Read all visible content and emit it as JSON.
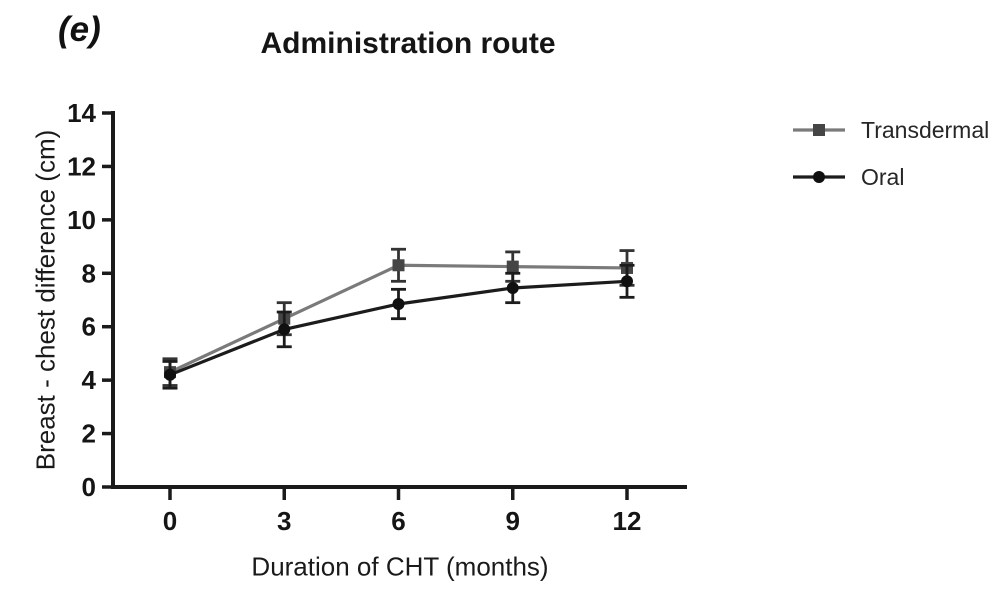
{
  "panel_label": "(e)",
  "title": "Administration route",
  "chart_data": {
    "type": "line",
    "title": "Administration route",
    "xlabel": "Duration of CHT (months)",
    "ylabel": "Breast - chest difference (cm)",
    "x": [
      0,
      3,
      6,
      9,
      12
    ],
    "xticks": [
      "0",
      "3",
      "6",
      "9",
      "12"
    ],
    "xtick_values": [
      0,
      3,
      6,
      9,
      12
    ],
    "yticks": [
      "0",
      "2",
      "4",
      "6",
      "8",
      "10",
      "12",
      "14"
    ],
    "ytick_values": [
      0,
      2,
      4,
      6,
      8,
      10,
      12,
      14
    ],
    "xlim": [
      0,
      12
    ],
    "ylim": [
      0,
      14
    ],
    "grid": false,
    "legend_position": "right",
    "error_bars": true,
    "series": [
      {
        "name": "Transdermal",
        "marker": "square",
        "line_color": "#7a7a7a",
        "marker_color": "#454545",
        "error_color": "#333333",
        "values": [
          4.3,
          6.3,
          8.3,
          8.25,
          8.2
        ],
        "errors": [
          0.5,
          0.6,
          0.6,
          0.55,
          0.65
        ]
      },
      {
        "name": "Oral",
        "marker": "circle",
        "line_color": "#1c1c1c",
        "marker_color": "#101010",
        "error_color": "#1c1c1c",
        "values": [
          4.2,
          5.9,
          6.85,
          7.45,
          7.7
        ],
        "errors": [
          0.5,
          0.65,
          0.55,
          0.55,
          0.6
        ]
      }
    ]
  },
  "colors": {
    "axis": "#1a1a1a",
    "text": "#151515",
    "background": "#ffffff"
  }
}
